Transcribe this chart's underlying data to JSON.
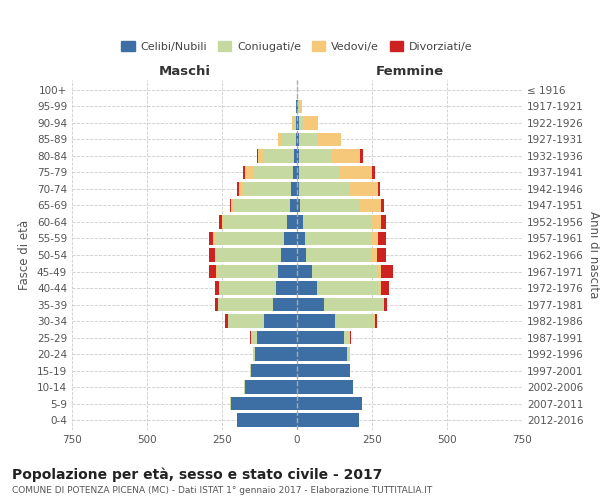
{
  "age_groups": [
    "0-4",
    "5-9",
    "10-14",
    "15-19",
    "20-24",
    "25-29",
    "30-34",
    "35-39",
    "40-44",
    "45-49",
    "50-54",
    "55-59",
    "60-64",
    "65-69",
    "70-74",
    "75-79",
    "80-84",
    "85-89",
    "90-94",
    "95-99",
    "100+"
  ],
  "birth_years": [
    "2012-2016",
    "2007-2011",
    "2002-2006",
    "1997-2001",
    "1992-1996",
    "1987-1991",
    "1982-1986",
    "1977-1981",
    "1972-1976",
    "1967-1971",
    "1962-1966",
    "1957-1961",
    "1952-1956",
    "1947-1951",
    "1942-1946",
    "1937-1941",
    "1932-1936",
    "1927-1931",
    "1922-1926",
    "1917-1921",
    "≤ 1916"
  ],
  "maschi": {
    "celibi": [
      200,
      220,
      175,
      155,
      140,
      135,
      110,
      80,
      70,
      65,
      55,
      45,
      35,
      25,
      20,
      15,
      10,
      5,
      3,
      2,
      0
    ],
    "coniugati": [
      0,
      5,
      3,
      2,
      5,
      20,
      120,
      185,
      190,
      200,
      215,
      230,
      210,
      190,
      160,
      130,
      100,
      50,
      10,
      3,
      0
    ],
    "vedovi": [
      0,
      0,
      0,
      0,
      2,
      0,
      0,
      0,
      0,
      5,
      5,
      5,
      5,
      5,
      15,
      30,
      20,
      10,
      5,
      0,
      0
    ],
    "divorziati": [
      0,
      0,
      0,
      0,
      0,
      2,
      10,
      10,
      15,
      25,
      20,
      15,
      10,
      5,
      5,
      5,
      5,
      0,
      0,
      0,
      0
    ]
  },
  "femmine": {
    "nubili": [
      205,
      215,
      185,
      175,
      165,
      155,
      125,
      90,
      65,
      50,
      30,
      25,
      20,
      10,
      5,
      5,
      5,
      5,
      5,
      3,
      0
    ],
    "coniugate": [
      0,
      2,
      2,
      2,
      10,
      20,
      130,
      195,
      210,
      220,
      220,
      225,
      230,
      200,
      170,
      135,
      110,
      60,
      15,
      5,
      0
    ],
    "vedove": [
      0,
      0,
      0,
      0,
      0,
      0,
      5,
      5,
      5,
      10,
      15,
      20,
      30,
      70,
      95,
      110,
      95,
      80,
      50,
      10,
      0
    ],
    "divorziate": [
      0,
      0,
      0,
      0,
      0,
      5,
      5,
      10,
      25,
      40,
      30,
      25,
      15,
      10,
      5,
      10,
      10,
      0,
      0,
      0,
      0
    ]
  },
  "colors": {
    "celibi_nubili": "#3d6fa5",
    "coniugati": "#c5d9a0",
    "vedovi": "#f5c87a",
    "divorziati": "#cc2222"
  },
  "title": "Popolazione per età, sesso e stato civile - 2017",
  "subtitle": "COMUNE DI POTENZA PICENA (MC) - Dati ISTAT 1° gennaio 2017 - Elaborazione TUTTITALIA.IT",
  "xlabel_left": "Maschi",
  "xlabel_right": "Femmine",
  "ylabel_left": "Fasce di età",
  "ylabel_right": "Anni di nascita",
  "xlim": 750,
  "legend_labels": [
    "Celibi/Nubili",
    "Coniugati/e",
    "Vedovi/e",
    "Divorziati/e"
  ],
  "background_color": "#ffffff",
  "grid_color": "#cccccc"
}
